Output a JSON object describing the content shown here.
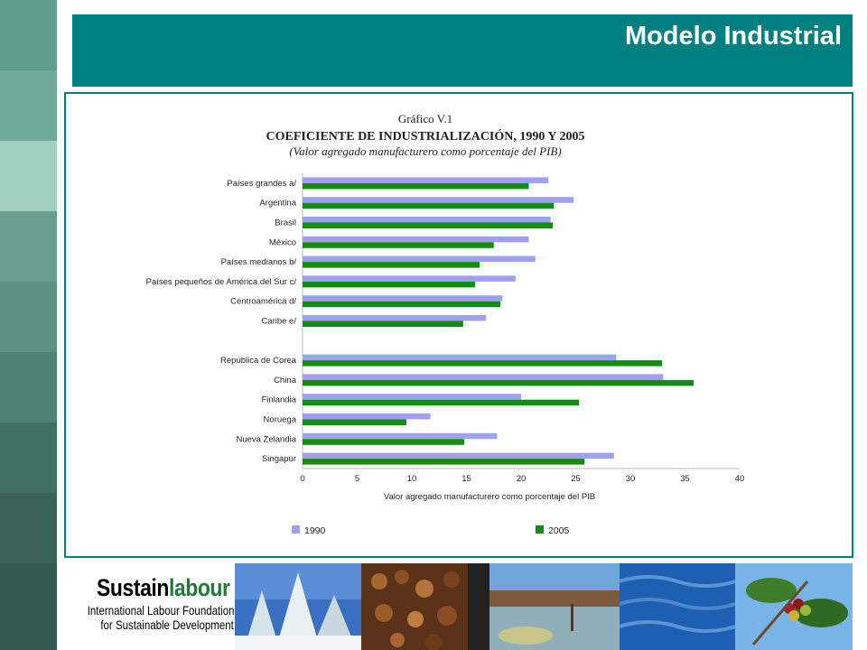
{
  "header": {
    "title": "Modelo Industrial"
  },
  "footer": {
    "logo_part1": "Sustain",
    "logo_part2": "labour",
    "org_line1": "International Labour Foundation",
    "org_line2": "for Sustainable Development"
  },
  "colors": {
    "header_bg": "#008080",
    "series_1990": "#a0a0f0",
    "series_2005": "#118d11"
  },
  "chart_data": {
    "type": "bar",
    "orientation": "horizontal",
    "figure_label": "Gráfico V.1",
    "title": "COEFICIENTE DE INDUSTRIALIZACIÓN, 1990 Y 2005",
    "subtitle": "(Valor agregado manufacturero como porcentaje del PIB)",
    "xlabel": "Valor agregado manufacturero como porcentaje del PIB",
    "ylabel": "",
    "xlim": [
      0,
      40
    ],
    "xticks": [
      "0",
      "5",
      "10",
      "15",
      "20",
      "25",
      "30",
      "35",
      "40"
    ],
    "legend_position": "bottom",
    "categories": [
      "Países grandes a/",
      "Argentina",
      "Brasil",
      "México",
      "Países medianos b/",
      "Países pequeños de América del Sur c/",
      "Centroamérica d/",
      "Caribe e/",
      "",
      "República de Corea",
      "China",
      "Finlandia",
      "Noruega",
      "Nueva Zelandia",
      "Singapur"
    ],
    "series": [
      {
        "name": "1990",
        "color": "#a0a0f0",
        "values": [
          22.5,
          24.8,
          22.7,
          20.7,
          21.3,
          19.5,
          18.3,
          16.8,
          null,
          28.7,
          33.0,
          20.0,
          11.7,
          17.8,
          28.5
        ]
      },
      {
        "name": "2005",
        "color": "#118d11",
        "values": [
          20.7,
          23.0,
          22.9,
          17.5,
          16.2,
          15.8,
          18.1,
          14.7,
          null,
          32.9,
          35.8,
          25.3,
          9.5,
          14.8,
          25.8
        ]
      }
    ]
  }
}
